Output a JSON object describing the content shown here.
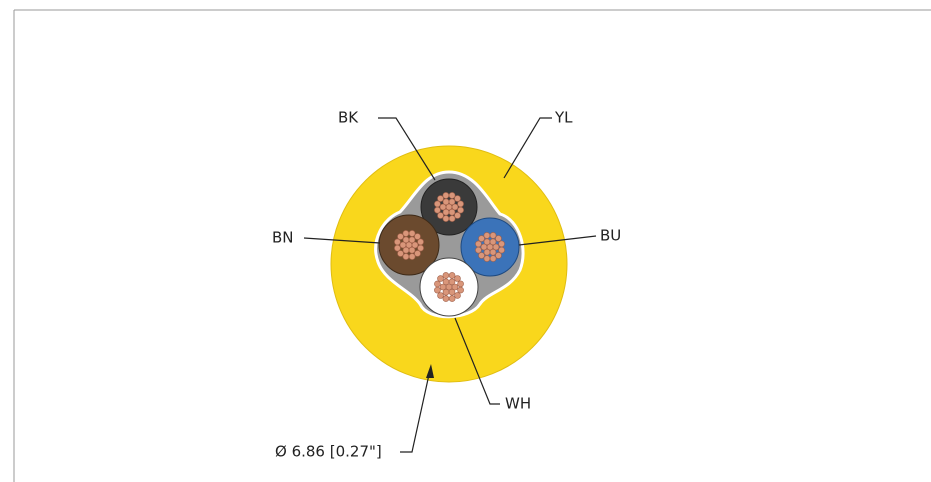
{
  "labels": {
    "bk": "BK",
    "yl": "YL",
    "bn": "BN",
    "bu": "BU",
    "wh": "WH",
    "diameter": "Ø 6.86 [0.27\"]"
  }
}
